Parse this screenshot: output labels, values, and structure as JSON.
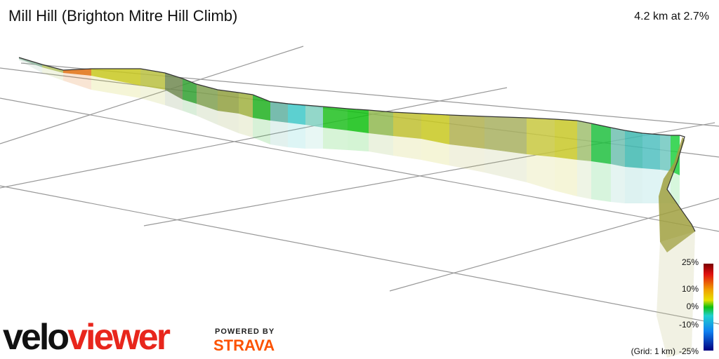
{
  "header": {
    "title": "Mill Hill (Brighton Mitre Hill Climb)",
    "summary": "4.2 km at 2.7%"
  },
  "legend": {
    "labels": [
      "25%",
      "10%",
      "0%",
      "-10%",
      "-25%"
    ],
    "grid_note": "(Grid: 1 km)"
  },
  "branding": {
    "logo_left": "velo",
    "logo_right": "viewer",
    "powered_by": "POWERED BY",
    "partner": "STRAVA"
  }
}
